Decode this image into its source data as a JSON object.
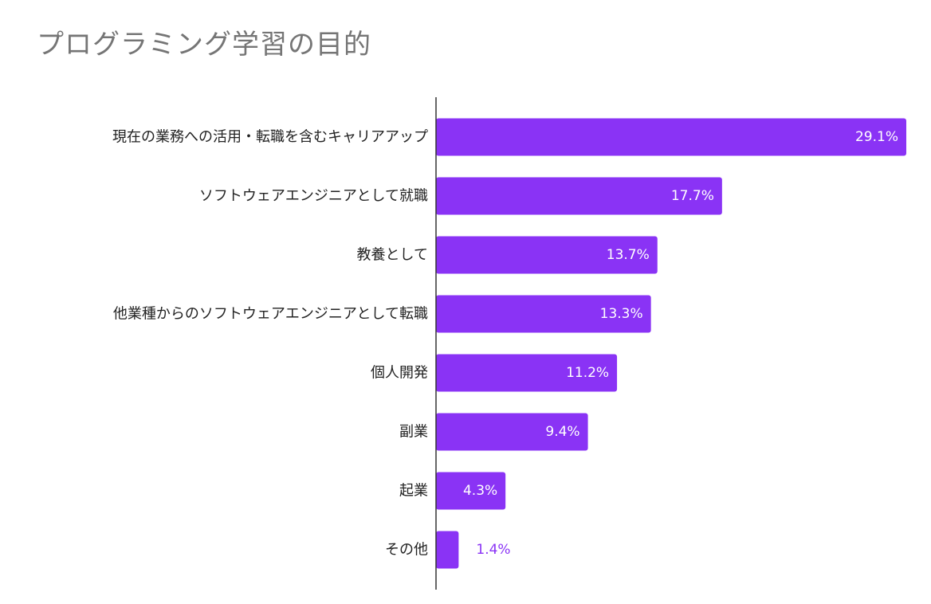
{
  "chart_data": {
    "type": "bar",
    "orientation": "horizontal",
    "title": "プログラミング学習の目的",
    "xlabel": "",
    "ylabel": "",
    "xlim": [
      0,
      29.1
    ],
    "categories": [
      "現在の業務への活用・転職を含むキャリアアップ",
      "ソフトウェアエンジニアとして就職",
      "教養として",
      "他業種からのソフトウェアエンジニアとして転職",
      "個人開発",
      "副業",
      "起業",
      "その他"
    ],
    "values": [
      29.1,
      17.7,
      13.7,
      13.3,
      11.2,
      9.4,
      4.3,
      1.4
    ],
    "value_labels": [
      "29.1%",
      "17.7%",
      "13.7%",
      "13.3%",
      "11.2%",
      "9.4%",
      "4.3%",
      "1.4%"
    ],
    "grid": false,
    "legend": "none",
    "colors": {
      "bar": "#8a33f5",
      "label_inside": "#ffffff",
      "label_outside": "#8a33f5",
      "axis": "#333333",
      "title": "#757575",
      "category_text": "#222222"
    }
  }
}
